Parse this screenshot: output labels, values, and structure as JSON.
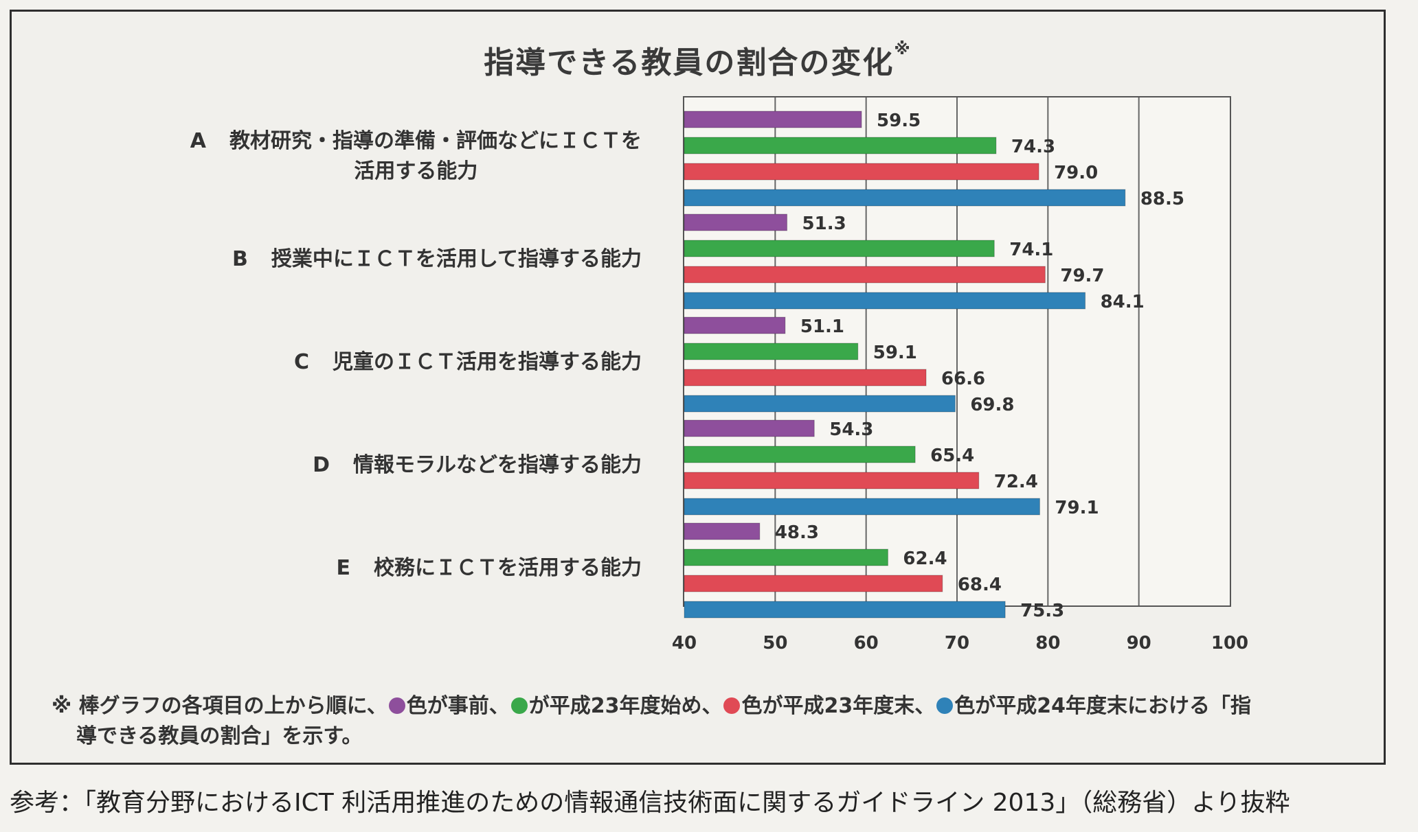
{
  "title": "指導できる教員の割合の変化",
  "title_mark": "※",
  "chart_data": {
    "type": "bar",
    "orientation": "horizontal",
    "categories": [
      {
        "letter": "A",
        "label_lines": [
          "教材研究・指導の準備・評価などにＩＣＴを",
          "活用する能力"
        ]
      },
      {
        "letter": "B",
        "label_lines": [
          "授業中にＩＣＴを活用して指導する能力"
        ]
      },
      {
        "letter": "C",
        "label_lines": [
          "児童のＩＣＴ活用を指導する能力"
        ]
      },
      {
        "letter": "D",
        "label_lines": [
          "情報モラルなどを指導する能力"
        ]
      },
      {
        "letter": "E",
        "label_lines": [
          "校務にＩＣＴを活用する能力"
        ]
      }
    ],
    "series": [
      {
        "color": "#8e4f9c",
        "values": [
          59.5,
          51.3,
          51.1,
          54.3,
          48.3
        ],
        "labels": [
          "59.5",
          "51.3",
          "51.1",
          "54.3",
          "48.3"
        ]
      },
      {
        "color": "#3aa84a",
        "values": [
          74.3,
          74.1,
          59.1,
          65.4,
          62.4
        ],
        "labels": [
          "74.3",
          "74.1",
          "59.1",
          "65.4",
          "62.4"
        ]
      },
      {
        "color": "#e04a55",
        "values": [
          79.0,
          79.7,
          66.6,
          72.4,
          68.4
        ],
        "labels": [
          "79.0",
          "79.7",
          "66.6",
          "72.4",
          "68.4"
        ]
      },
      {
        "color": "#2f82b8",
        "values": [
          88.5,
          84.1,
          69.8,
          79.1,
          75.3
        ],
        "labels": [
          "88.5",
          "84.1",
          "69.8",
          "79.1",
          "75.3"
        ]
      }
    ],
    "xlim": [
      40,
      100
    ],
    "xticks": [
      "40",
      "50",
      "60",
      "70",
      "80",
      "90",
      "100"
    ],
    "grid": true,
    "legend": "footnote"
  },
  "footnote": {
    "prefix": "※ 棒グラフの各項目の上から順に、",
    "p1": "色が事前、",
    "p2": "が平成23年度始め、",
    "p3": "色が平成23年度末、",
    "p4": "色が平成24年度末における「指",
    "line2": "導できる教員の割合」を示す。"
  },
  "source": "参考：「教育分野におけるICT 利活用推進のための情報通信技術面に関するガイドライン 2013」（総務省）より抜粋"
}
